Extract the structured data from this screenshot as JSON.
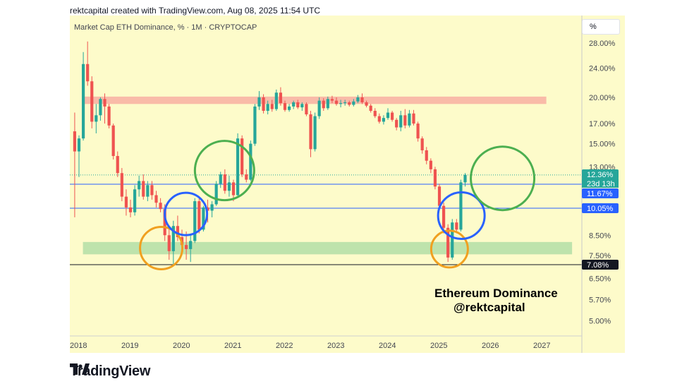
{
  "header": {
    "credit": "rektcapital created with TradingView.com, Aug 08, 2025 11:54 UTC"
  },
  "chart": {
    "title": "Market Cap ETH Dominance, % · 1M · CRYPTOCAP",
    "unit_button": "%",
    "annotation_line1": "Ethereum Dominance",
    "annotation_line2": "@rektcapital"
  },
  "footer": {
    "brand": "TradingView"
  },
  "colors": {
    "background": "#fdfbca",
    "up": "#26a69a",
    "down": "#ef5350",
    "resistance_zone": "#f8b4a4",
    "support_zone": "#b7e0a8",
    "circle_orange": "#f0a020",
    "circle_blue": "#2962ff",
    "circle_green": "#4caf50"
  },
  "chart_data": {
    "type": "candlestick",
    "title": "Market Cap ETH Dominance, % · 1M · CRYPTOCAP",
    "yscale": "log",
    "ylim": [
      4.4,
      32
    ],
    "y_ticks": [
      "28.00%",
      "24.00%",
      "20.00%",
      "17.00%",
      "15.00%",
      "13.00%",
      "8.50%",
      "7.50%",
      "6.50%",
      "5.70%",
      "5.00%"
    ],
    "x_ticks": [
      "2018",
      "2019",
      "2020",
      "2021",
      "2022",
      "2023",
      "2024",
      "2025",
      "2026",
      "2027"
    ],
    "price_labels": [
      {
        "text": "12.36%",
        "value": 12.36,
        "color": "#26a69a"
      },
      {
        "text": "23d 13h",
        "value": 11.9,
        "color": "#26a69a"
      },
      {
        "text": "11.67%",
        "value": 11.67,
        "color": "#2962ff"
      },
      {
        "text": "10.05%",
        "value": 10.05,
        "color": "#2962ff"
      },
      {
        "text": "7.08%",
        "value": 7.08,
        "color": "#131722"
      }
    ],
    "horizontal_lines": [
      {
        "value": 11.67,
        "color": "#2962ff",
        "label": "11.67%"
      },
      {
        "value": 10.05,
        "color": "#2962ff",
        "label": "10.05%"
      },
      {
        "value": 7.08,
        "color": "#131722",
        "label": "7.08%"
      }
    ],
    "zones": [
      {
        "name": "resistance",
        "from": 19.2,
        "to": 20.1,
        "x_from": 2018.2,
        "x_to": 2027.2
      },
      {
        "name": "support",
        "from": 7.55,
        "to": 8.15,
        "x_from": 2018.2,
        "x_to": 2027.7
      }
    ],
    "circles": [
      {
        "cx": 2019.72,
        "cy": 7.85,
        "color": "#f0a020"
      },
      {
        "cx": 2020.2,
        "cy": 9.7,
        "color": "#2962ff"
      },
      {
        "cx": 2020.95,
        "cy": 12.7,
        "color": "#4caf50"
      },
      {
        "cx": 2025.32,
        "cy": 7.8,
        "color": "#f0a020"
      },
      {
        "cx": 2025.55,
        "cy": 9.6,
        "color": "#2962ff"
      },
      {
        "cx": 2026.35,
        "cy": 12.1,
        "color": "#4caf50"
      }
    ],
    "candles": [
      {
        "o": 16.2,
        "h": 18.2,
        "l": 9.5,
        "c": 14.3
      },
      {
        "o": 14.3,
        "h": 15.8,
        "l": 12.2,
        "c": 15.5
      },
      {
        "o": 15.5,
        "h": 26.5,
        "l": 15.3,
        "c": 24.6
      },
      {
        "o": 24.6,
        "h": 28.3,
        "l": 21.5,
        "c": 22.1
      },
      {
        "o": 22.1,
        "h": 22.8,
        "l": 16.5,
        "c": 17.2
      },
      {
        "o": 17.2,
        "h": 19.2,
        "l": 16.0,
        "c": 17.9
      },
      {
        "o": 17.9,
        "h": 20.0,
        "l": 17.3,
        "c": 19.8
      },
      {
        "o": 19.8,
        "h": 20.5,
        "l": 17.0,
        "c": 18.9
      },
      {
        "o": 18.9,
        "h": 19.2,
        "l": 16.5,
        "c": 16.8
      },
      {
        "o": 16.8,
        "h": 17.0,
        "l": 13.6,
        "c": 13.9
      },
      {
        "o": 13.9,
        "h": 14.3,
        "l": 12.2,
        "c": 12.5
      },
      {
        "o": 12.5,
        "h": 12.9,
        "l": 10.5,
        "c": 10.8
      },
      {
        "o": 10.8,
        "h": 11.3,
        "l": 9.6,
        "c": 10.1
      },
      {
        "o": 10.1,
        "h": 10.6,
        "l": 9.5,
        "c": 9.8
      },
      {
        "o": 9.8,
        "h": 11.6,
        "l": 9.6,
        "c": 11.3
      },
      {
        "o": 11.3,
        "h": 12.3,
        "l": 10.8,
        "c": 11.9
      },
      {
        "o": 11.9,
        "h": 12.4,
        "l": 10.6,
        "c": 10.8
      },
      {
        "o": 10.8,
        "h": 11.9,
        "l": 10.5,
        "c": 11.6
      },
      {
        "o": 11.6,
        "h": 11.9,
        "l": 10.6,
        "c": 10.9
      },
      {
        "o": 10.9,
        "h": 11.2,
        "l": 10.1,
        "c": 10.4
      },
      {
        "o": 10.4,
        "h": 10.7,
        "l": 9.8,
        "c": 10.0
      },
      {
        "o": 10.0,
        "h": 10.3,
        "l": 8.2,
        "c": 8.5
      },
      {
        "o": 8.5,
        "h": 8.9,
        "l": 7.3,
        "c": 7.7
      },
      {
        "o": 7.7,
        "h": 9.3,
        "l": 7.1,
        "c": 9.0
      },
      {
        "o": 9.0,
        "h": 9.6,
        "l": 8.2,
        "c": 8.4
      },
      {
        "o": 8.4,
        "h": 8.8,
        "l": 7.9,
        "c": 8.0
      },
      {
        "o": 8.0,
        "h": 8.7,
        "l": 7.3,
        "c": 7.8
      },
      {
        "o": 7.8,
        "h": 8.5,
        "l": 7.2,
        "c": 8.2
      },
      {
        "o": 8.2,
        "h": 10.7,
        "l": 8.1,
        "c": 10.5
      },
      {
        "o": 10.5,
        "h": 10.8,
        "l": 8.6,
        "c": 8.8
      },
      {
        "o": 8.8,
        "h": 10.2,
        "l": 8.7,
        "c": 10.1
      },
      {
        "o": 10.1,
        "h": 10.6,
        "l": 9.2,
        "c": 9.9
      },
      {
        "o": 9.9,
        "h": 10.5,
        "l": 9.5,
        "c": 10.3
      },
      {
        "o": 10.3,
        "h": 11.9,
        "l": 10.2,
        "c": 11.7
      },
      {
        "o": 11.7,
        "h": 12.6,
        "l": 11.4,
        "c": 12.4
      },
      {
        "o": 12.4,
        "h": 12.8,
        "l": 11.0,
        "c": 11.2
      },
      {
        "o": 11.2,
        "h": 12.3,
        "l": 10.8,
        "c": 11.8
      },
      {
        "o": 11.8,
        "h": 12.0,
        "l": 10.5,
        "c": 10.9
      },
      {
        "o": 10.9,
        "h": 16.0,
        "l": 10.8,
        "c": 15.5
      },
      {
        "o": 15.5,
        "h": 15.8,
        "l": 12.2,
        "c": 12.4
      },
      {
        "o": 12.4,
        "h": 12.8,
        "l": 11.8,
        "c": 12.0
      },
      {
        "o": 12.0,
        "h": 15.3,
        "l": 11.9,
        "c": 15.0
      },
      {
        "o": 15.0,
        "h": 19.2,
        "l": 14.8,
        "c": 18.9
      },
      {
        "o": 18.9,
        "h": 20.8,
        "l": 18.5,
        "c": 20.0
      },
      {
        "o": 20.0,
        "h": 20.4,
        "l": 18.1,
        "c": 18.4
      },
      {
        "o": 18.4,
        "h": 19.6,
        "l": 18.0,
        "c": 19.2
      },
      {
        "o": 19.2,
        "h": 19.7,
        "l": 18.3,
        "c": 18.6
      },
      {
        "o": 18.6,
        "h": 21.0,
        "l": 18.4,
        "c": 20.6
      },
      {
        "o": 20.6,
        "h": 21.3,
        "l": 19.0,
        "c": 19.3
      },
      {
        "o": 19.3,
        "h": 19.6,
        "l": 18.3,
        "c": 18.5
      },
      {
        "o": 18.5,
        "h": 19.2,
        "l": 18.3,
        "c": 18.9
      },
      {
        "o": 18.9,
        "h": 19.6,
        "l": 18.6,
        "c": 19.4
      },
      {
        "o": 19.4,
        "h": 19.7,
        "l": 18.6,
        "c": 18.8
      },
      {
        "o": 18.8,
        "h": 19.4,
        "l": 18.4,
        "c": 19.2
      },
      {
        "o": 19.2,
        "h": 19.4,
        "l": 17.8,
        "c": 18.0
      },
      {
        "o": 18.0,
        "h": 18.4,
        "l": 13.8,
        "c": 14.5
      },
      {
        "o": 14.5,
        "h": 18.2,
        "l": 14.3,
        "c": 17.8
      },
      {
        "o": 17.8,
        "h": 20.0,
        "l": 17.5,
        "c": 19.6
      },
      {
        "o": 19.6,
        "h": 19.9,
        "l": 18.4,
        "c": 18.7
      },
      {
        "o": 18.7,
        "h": 20.1,
        "l": 18.5,
        "c": 19.8
      },
      {
        "o": 19.8,
        "h": 20.2,
        "l": 19.3,
        "c": 19.6
      },
      {
        "o": 19.6,
        "h": 20.0,
        "l": 19.0,
        "c": 19.2
      },
      {
        "o": 19.2,
        "h": 19.7,
        "l": 18.8,
        "c": 19.3
      },
      {
        "o": 19.3,
        "h": 19.7,
        "l": 19.0,
        "c": 19.4
      },
      {
        "o": 19.4,
        "h": 19.6,
        "l": 18.9,
        "c": 19.1
      },
      {
        "o": 19.1,
        "h": 19.8,
        "l": 18.9,
        "c": 19.5
      },
      {
        "o": 19.5,
        "h": 20.3,
        "l": 19.3,
        "c": 20.0
      },
      {
        "o": 20.0,
        "h": 20.5,
        "l": 19.2,
        "c": 19.4
      },
      {
        "o": 19.4,
        "h": 19.6,
        "l": 18.8,
        "c": 19.0
      },
      {
        "o": 19.0,
        "h": 19.2,
        "l": 18.2,
        "c": 18.4
      },
      {
        "o": 18.4,
        "h": 18.7,
        "l": 17.6,
        "c": 17.8
      },
      {
        "o": 17.8,
        "h": 18.1,
        "l": 17.0,
        "c": 17.2
      },
      {
        "o": 17.2,
        "h": 17.9,
        "l": 16.9,
        "c": 17.6
      },
      {
        "o": 17.6,
        "h": 18.7,
        "l": 17.4,
        "c": 18.2
      },
      {
        "o": 18.2,
        "h": 18.4,
        "l": 17.2,
        "c": 17.4
      },
      {
        "o": 17.4,
        "h": 17.6,
        "l": 16.3,
        "c": 16.6
      },
      {
        "o": 16.6,
        "h": 18.4,
        "l": 16.2,
        "c": 17.9
      },
      {
        "o": 17.9,
        "h": 18.6,
        "l": 16.5,
        "c": 16.8
      },
      {
        "o": 16.8,
        "h": 18.5,
        "l": 16.6,
        "c": 18.1
      },
      {
        "o": 18.1,
        "h": 18.5,
        "l": 16.8,
        "c": 17.0
      },
      {
        "o": 17.0,
        "h": 17.2,
        "l": 15.2,
        "c": 15.5
      },
      {
        "o": 15.5,
        "h": 15.7,
        "l": 14.1,
        "c": 14.4
      },
      {
        "o": 14.4,
        "h": 14.7,
        "l": 13.2,
        "c": 13.5
      },
      {
        "o": 13.5,
        "h": 13.7,
        "l": 12.5,
        "c": 12.8
      },
      {
        "o": 12.8,
        "h": 13.0,
        "l": 11.3,
        "c": 11.5
      },
      {
        "o": 11.5,
        "h": 11.7,
        "l": 10.0,
        "c": 10.2
      },
      {
        "o": 10.2,
        "h": 10.4,
        "l": 8.6,
        "c": 8.9
      },
      {
        "o": 8.9,
        "h": 9.1,
        "l": 7.2,
        "c": 7.4
      },
      {
        "o": 7.4,
        "h": 9.4,
        "l": 7.3,
        "c": 9.2
      },
      {
        "o": 9.2,
        "h": 9.4,
        "l": 8.6,
        "c": 8.8
      },
      {
        "o": 8.8,
        "h": 12.0,
        "l": 8.7,
        "c": 11.8
      },
      {
        "o": 11.8,
        "h": 12.5,
        "l": 11.5,
        "c": 12.36
      }
    ],
    "candle_start": 2018.0,
    "candle_step": 0.0833333
  }
}
